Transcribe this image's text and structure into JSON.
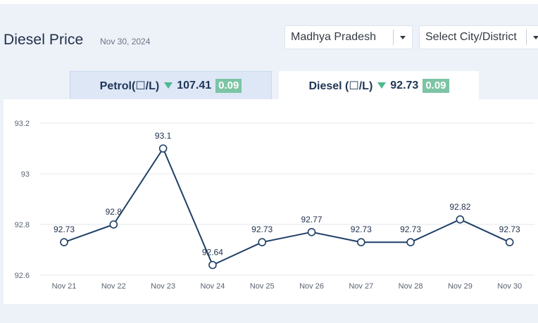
{
  "header": {
    "title": "Diesel Price",
    "date": "Nov 30, 2024",
    "state_select": "Madhya Pradesh",
    "city_select": "Select City/District"
  },
  "tabs": {
    "petrol": {
      "label": "Petrol(☐/L)",
      "price": "107.41",
      "change": "0.09",
      "trend": "down"
    },
    "diesel": {
      "label": "Diesel (☐/L)",
      "price": "92.73",
      "change": "0.09",
      "trend": "down",
      "active": true
    }
  },
  "colors": {
    "line": "#1f3f66",
    "grid": "#e4e7ec",
    "badge": "#7cc4a4",
    "trend_down": "#4cb98f"
  },
  "chart_data": {
    "type": "line",
    "categories": [
      "Nov 21",
      "Nov 22",
      "Nov 23",
      "Nov 24",
      "Nov 25",
      "Nov 26",
      "Nov 27",
      "Nov 28",
      "Nov 29",
      "Nov 30"
    ],
    "series": [
      {
        "values": [
          92.73,
          92.8,
          93.1,
          92.64,
          92.73,
          92.77,
          92.73,
          92.73,
          92.82,
          92.73
        ]
      }
    ],
    "data_labels": [
      "92.73",
      "92.8",
      "93.1",
      "92.64",
      "92.73",
      "92.77",
      "92.73",
      "92.73",
      "92.82",
      "92.73"
    ],
    "y_ticks": [
      92.6,
      92.8,
      93,
      93.2
    ],
    "y_tick_labels": [
      "92.6",
      "92.8",
      "93",
      "93.2"
    ],
    "ylim": [
      92.6,
      93.2
    ],
    "grid": true,
    "legend": "none",
    "title": "",
    "xlabel": "",
    "ylabel": ""
  }
}
